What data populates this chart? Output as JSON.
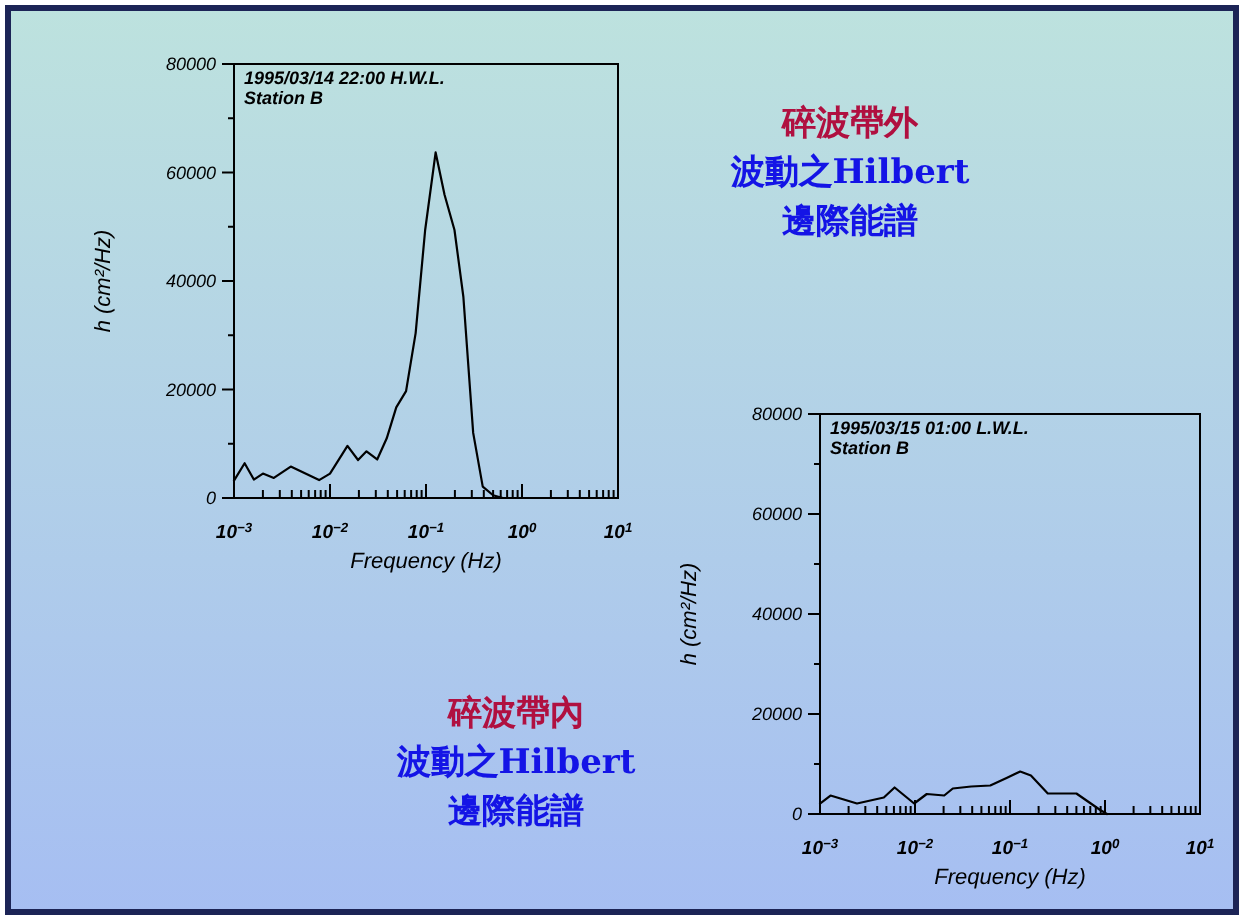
{
  "chart_data": [
    {
      "type": "line",
      "log": "x",
      "xlabel": "Frequency (Hz)",
      "ylabel": "h (cm²/Hz)",
      "annotations": [
        "1995/03/14  22:00  H.W.L.",
        "Station B",
        "碎波帶外",
        "波動之Hilbert",
        "邊際能譜"
      ],
      "x": [
        0.001,
        0.00129,
        0.00161,
        0.002,
        0.0026,
        0.0039,
        0.0077,
        0.01,
        0.0152,
        0.0196,
        0.024,
        0.031,
        0.039,
        0.049,
        0.062,
        0.078,
        0.098,
        0.126,
        0.156,
        0.198,
        0.245,
        0.31,
        0.39,
        0.5,
        0.63,
        1
      ],
      "series": [
        {
          "color": "#000000",
          "values": [
            3200,
            6400,
            3400,
            4500,
            3700,
            5800,
            3300,
            4500,
            9600,
            7000,
            8600,
            7100,
            11000,
            16700,
            19700,
            30400,
            49400,
            63700,
            55900,
            49400,
            37100,
            12000,
            2100,
            500,
            0,
            0
          ]
        }
      ],
      "xlim": [
        0.001,
        10
      ],
      "ylim": [
        0,
        80000
      ],
      "xticks": [
        {
          "value": 0.001,
          "label": "10$^{−3}$"
        },
        {
          "value": 0.002,
          "label": null
        },
        {
          "value": 0.003,
          "label": null
        },
        {
          "value": 0.004,
          "label": null
        },
        {
          "value": 0.005,
          "label": null
        },
        {
          "value": 0.006,
          "label": null
        },
        {
          "value": 0.007,
          "label": null
        },
        {
          "value": 0.008,
          "label": null
        },
        {
          "value": 0.009,
          "label": null
        },
        {
          "value": 0.01,
          "label": "10$^{−2}$"
        },
        {
          "value": 0.02,
          "label": null
        },
        {
          "value": 0.03,
          "label": null
        },
        {
          "value": 0.04,
          "label": null
        },
        {
          "value": 0.05,
          "label": null
        },
        {
          "value": 0.06,
          "label": null
        },
        {
          "value": 0.07,
          "label": null
        },
        {
          "value": 0.08,
          "label": null
        },
        {
          "value": 0.09,
          "label": null
        },
        {
          "value": 0.1,
          "label": "10$^{−1}$"
        },
        {
          "value": 0.2,
          "label": null
        },
        {
          "value": 0.3,
          "label": null
        },
        {
          "value": 0.4,
          "label": null
        },
        {
          "value": 0.5,
          "label": null
        },
        {
          "value": 0.6,
          "label": null
        },
        {
          "value": 0.7,
          "label": null
        },
        {
          "value": 0.8,
          "label": null
        },
        {
          "value": 0.9,
          "label": null
        },
        {
          "value": 1,
          "label": "10$^{0}$"
        },
        {
          "value": 2,
          "label": null
        },
        {
          "value": 3,
          "label": null
        },
        {
          "value": 4,
          "label": null
        },
        {
          "value": 5,
          "label": null
        },
        {
          "value": 6,
          "label": null
        },
        {
          "value": 7,
          "label": null
        },
        {
          "value": 8,
          "label": null
        },
        {
          "value": 9,
          "label": null
        },
        {
          "value": 10,
          "label": "10$^{1}$"
        }
      ],
      "yticks": [
        0,
        {
          "value": 10000,
          "label": null
        },
        20000,
        {
          "value": 30000,
          "label": null
        },
        40000,
        {
          "value": 50000,
          "label": null
        },
        60000,
        {
          "value": 70000,
          "label": null
        },
        80000
      ]
    },
    {
      "type": "line",
      "log": "x",
      "xlabel": "Frequency (Hz)",
      "ylabel": "h (cm²/Hz)",
      "annotations": [
        "1995/03/15  01:00  L.W.L.",
        "Station B",
        "碎波帶內",
        "波動之Hilbert",
        "邊際能譜"
      ],
      "x": [
        0.001,
        0.00129,
        0.00245,
        0.0047,
        0.0061,
        0.0098,
        0.0133,
        0.0203,
        0.025,
        0.039,
        0.062,
        0.092,
        0.128,
        0.166,
        0.25,
        0.5,
        0.89,
        1.05
      ],
      "series": [
        {
          "color": "#000000",
          "values": [
            2100,
            3700,
            2100,
            3300,
            5300,
            2100,
            4000,
            3700,
            5100,
            5500,
            5700,
            7200,
            8500,
            7700,
            4100,
            4100,
            800,
            0
          ]
        }
      ],
      "xlim": [
        0.001,
        10
      ],
      "ylim": [
        0,
        80000
      ],
      "xticks": [
        {
          "value": 0.001,
          "label": "10$^{−3}$"
        },
        {
          "value": 0.002,
          "label": null
        },
        {
          "value": 0.003,
          "label": null
        },
        {
          "value": 0.004,
          "label": null
        },
        {
          "value": 0.005,
          "label": null
        },
        {
          "value": 0.006,
          "label": null
        },
        {
          "value": 0.007,
          "label": null
        },
        {
          "value": 0.008,
          "label": null
        },
        {
          "value": 0.009,
          "label": null
        },
        {
          "value": 0.01,
          "label": "10$^{−2}$"
        },
        {
          "value": 0.02,
          "label": null
        },
        {
          "value": 0.03,
          "label": null
        },
        {
          "value": 0.04,
          "label": null
        },
        {
          "value": 0.05,
          "label": null
        },
        {
          "value": 0.06,
          "label": null
        },
        {
          "value": 0.07,
          "label": null
        },
        {
          "value": 0.08,
          "label": null
        },
        {
          "value": 0.09,
          "label": null
        },
        {
          "value": 0.1,
          "label": "10$^{−1}$"
        },
        {
          "value": 0.2,
          "label": null
        },
        {
          "value": 0.3,
          "label": null
        },
        {
          "value": 0.4,
          "label": null
        },
        {
          "value": 0.5,
          "label": null
        },
        {
          "value": 0.6,
          "label": null
        },
        {
          "value": 0.7,
          "label": null
        },
        {
          "value": 0.8,
          "label": null
        },
        {
          "value": 0.9,
          "label": null
        },
        {
          "value": 1,
          "label": "10$^{0}$"
        },
        {
          "value": 2,
          "label": null
        },
        {
          "value": 3,
          "label": null
        },
        {
          "value": 4,
          "label": null
        },
        {
          "value": 5,
          "label": null
        },
        {
          "value": 6,
          "label": null
        },
        {
          "value": 7,
          "label": null
        },
        {
          "value": 8,
          "label": null
        },
        {
          "value": 9,
          "label": null
        },
        {
          "value": 10,
          "label": "10$^{1}$"
        }
      ],
      "yticks": [
        0,
        {
          "value": 10000,
          "label": null
        },
        20000,
        {
          "value": 30000,
          "label": null
        },
        40000,
        {
          "value": 50000,
          "label": null
        },
        60000,
        {
          "value": 70000,
          "label": null
        },
        80000
      ]
    }
  ]
}
